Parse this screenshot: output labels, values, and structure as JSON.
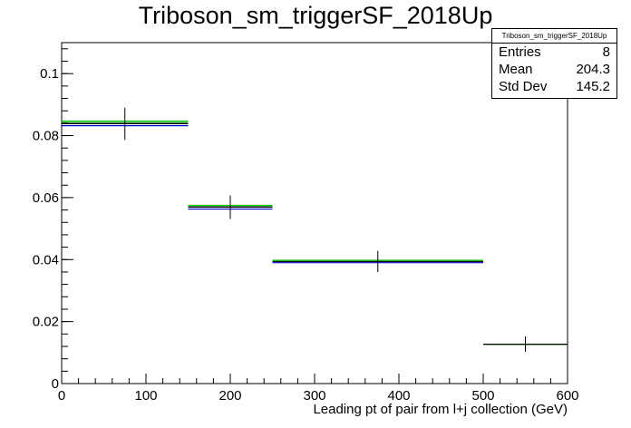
{
  "chart_data": {
    "type": "histogram",
    "title": "Triboson_sm_triggerSF_2018Up",
    "xlabel": "Leading pt of pair from l+j collection (GeV)",
    "ylabel": "",
    "xlim": [
      0,
      600
    ],
    "ylim": [
      0,
      0.11
    ],
    "x_ticks": [
      0,
      100,
      200,
      300,
      400,
      500,
      600
    ],
    "y_ticks": [
      0,
      0.02,
      0.04,
      0.06,
      0.08,
      0.1
    ],
    "x_tick_labels": [
      "0",
      "100",
      "200",
      "300",
      "400",
      "500",
      "600"
    ],
    "y_tick_labels": [
      "0",
      "0.02",
      "0.04",
      "0.06",
      "0.08",
      "0.1"
    ],
    "bins": [
      {
        "low": 0,
        "high": 150,
        "value": 0.0838,
        "error": 0.0052,
        "variations": [
          0.0832,
          0.0847,
          0.0842
        ]
      },
      {
        "low": 150,
        "high": 250,
        "value": 0.0569,
        "error": 0.0038,
        "variations": [
          0.0563,
          0.0575,
          0.0571
        ]
      },
      {
        "low": 250,
        "high": 500,
        "value": 0.0394,
        "error": 0.0034,
        "variations": [
          0.039,
          0.0398,
          0.0394
        ]
      },
      {
        "low": 500,
        "high": 600,
        "value": 0.0127,
        "error": 0.0025,
        "variations": [
          0.0127,
          0.0127,
          0.0127
        ]
      }
    ],
    "line_colors": {
      "nominal": "#000000",
      "variations": [
        "#0000cc",
        "#00cc00",
        "#006600"
      ]
    },
    "grid": false,
    "stats_box": {
      "title": "Triboson_sm_triggerSF_2018Up",
      "entries_label": "Entries",
      "entries": "8",
      "mean_label": "Mean",
      "mean": "204.3",
      "std_label": "Std Dev",
      "std": "145.2"
    }
  }
}
